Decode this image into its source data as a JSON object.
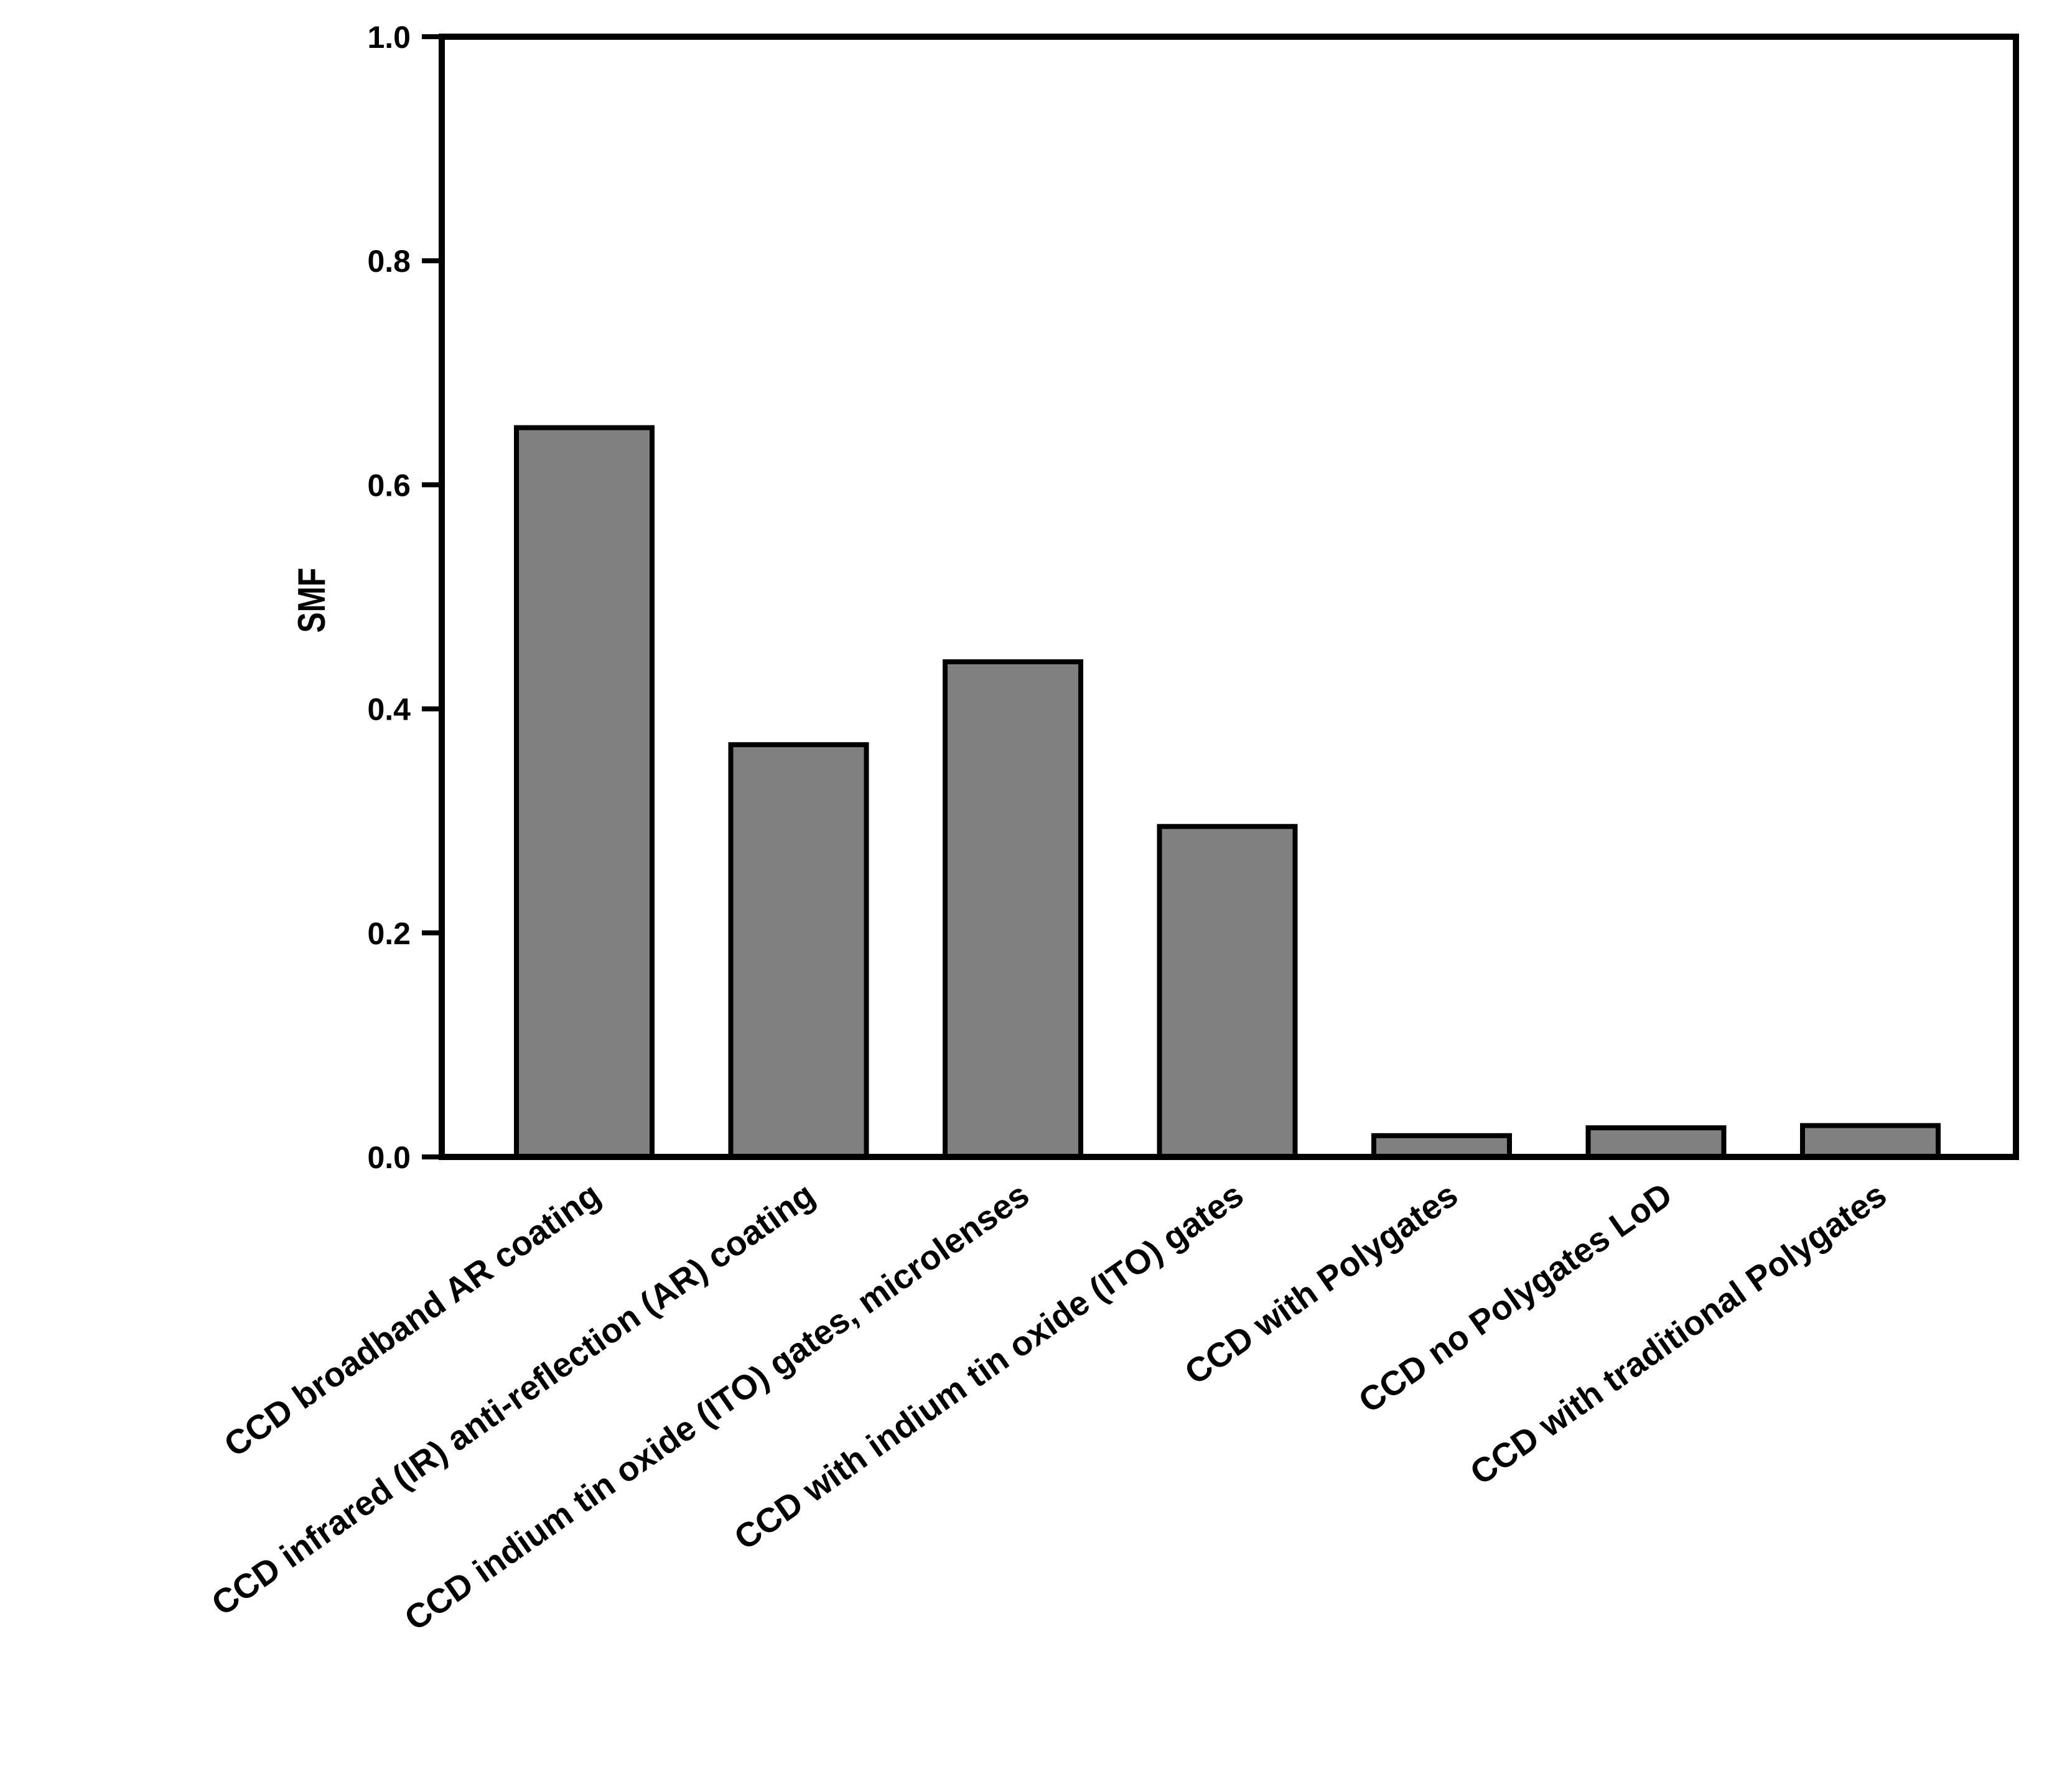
{
  "chart_data": {
    "type": "bar",
    "title": "",
    "xlabel": "",
    "ylabel": "SMF",
    "ylim": [
      0,
      1.0
    ],
    "yticks": [
      "0.0",
      "0.2",
      "0.4",
      "0.6",
      "0.8",
      "1.0"
    ],
    "grid": false,
    "categories": [
      "CCD broadband AR coating",
      "CCD infrared (IR) anti-reflection (AR) coating",
      "CCD indium tin oxide (ITO) gates, microlenses",
      "CCD with indium tin oxide (ITO) gates",
      "CCD with Polygates",
      "CCD no Polygates LoD",
      "CCD with traditional Polygates"
    ],
    "values": [
      0.651,
      0.368,
      0.442,
      0.295,
      0.019,
      0.026,
      0.028
    ],
    "bar_color": "#808080",
    "edge_color": "#000000"
  }
}
